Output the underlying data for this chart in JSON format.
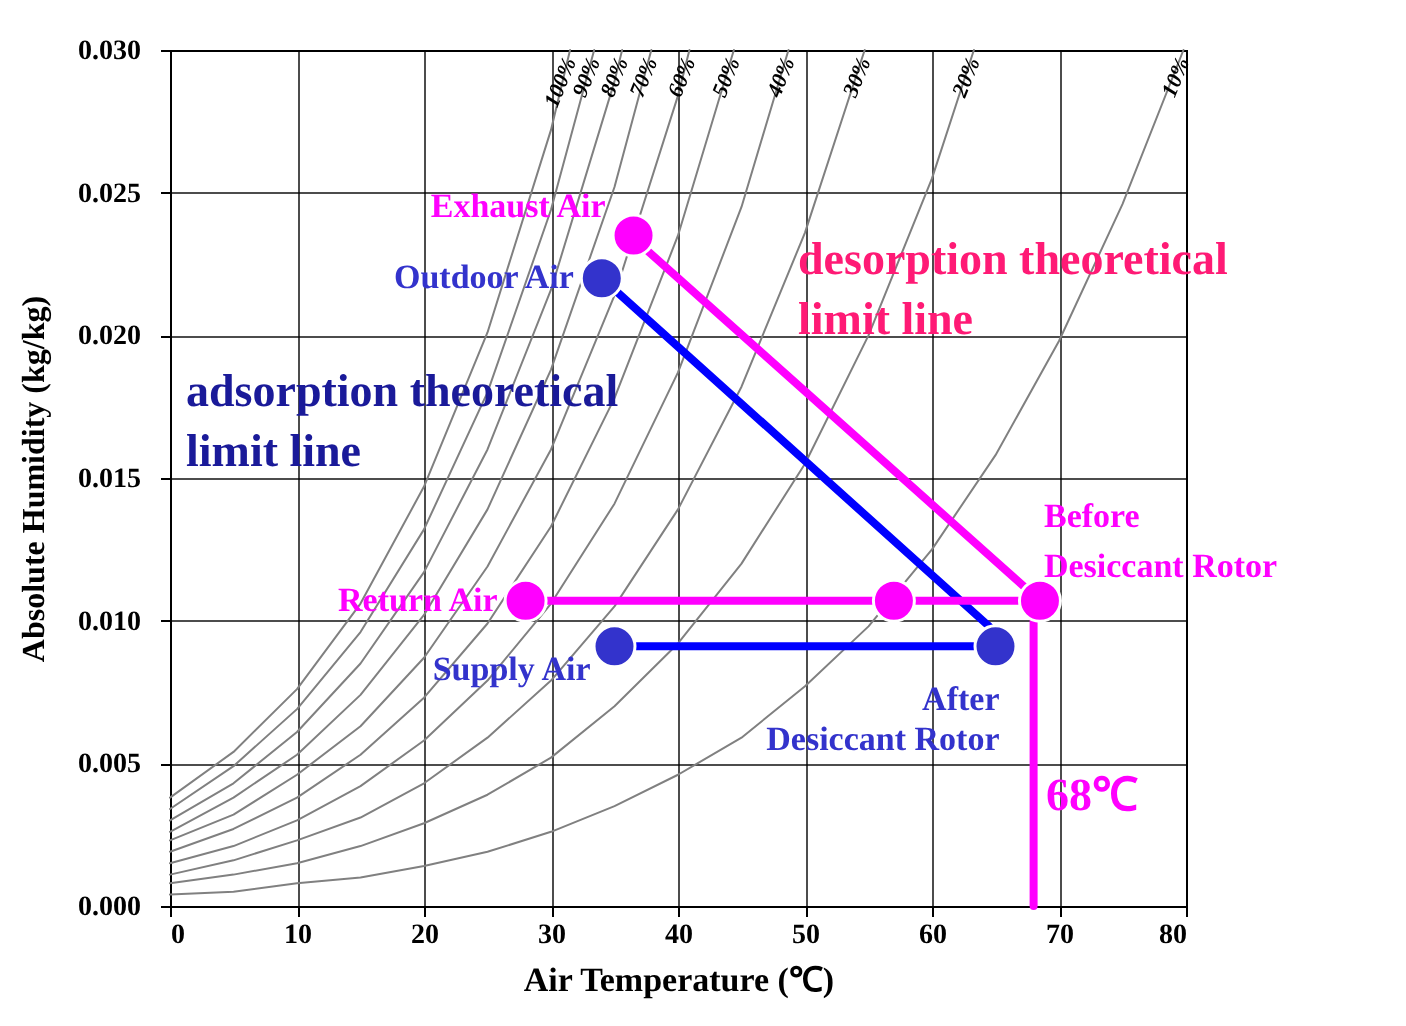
{
  "chart_data": {
    "type": "scatter",
    "xlabel": "Air Temperature (℃)",
    "ylabel": "Absolute Humidity (kg/kg)",
    "xlim": [
      0,
      80
    ],
    "xticks": [
      0,
      10,
      20,
      30,
      40,
      50,
      60,
      70,
      80
    ],
    "ylim": [
      0,
      0.03
    ],
    "yticks": [
      {
        "value": 0,
        "label": "0.000"
      },
      {
        "value": 0.005,
        "label": "0.005"
      },
      {
        "value": 0.01,
        "label": "0.010"
      },
      {
        "value": 0.015,
        "label": "0.015"
      },
      {
        "value": 0.02,
        "label": "0.020"
      },
      {
        "value": 0.025,
        "label": "0.025"
      },
      {
        "value": 0.03,
        "label": "0.030"
      }
    ],
    "grid": true,
    "marker": "circle",
    "series": [
      {
        "type": "line",
        "name": "100%",
        "marker": "none",
        "color": "#808080",
        "x": [
          0,
          5,
          10,
          15,
          20,
          25,
          30,
          31.5
        ],
        "values": [
          0.0038,
          0.0054,
          0.0076,
          0.0106,
          0.0147,
          0.0201,
          0.0272,
          0.03
        ]
      },
      {
        "type": "line",
        "name": "90%",
        "marker": "none",
        "color": "#808080",
        "x": [
          0,
          5,
          10,
          15,
          20,
          25,
          30,
          33.4
        ],
        "values": [
          0.0034,
          0.0049,
          0.0069,
          0.0096,
          0.0132,
          0.018,
          0.0244,
          0.03
        ]
      },
      {
        "type": "line",
        "name": "80%",
        "marker": "none",
        "color": "#808080",
        "x": [
          0,
          5,
          10,
          15,
          20,
          25,
          30,
          35,
          35.6
        ],
        "values": [
          0.003,
          0.0043,
          0.0061,
          0.0085,
          0.0117,
          0.016,
          0.0216,
          0.0289,
          0.03
        ]
      },
      {
        "type": "line",
        "name": "70%",
        "marker": "none",
        "color": "#808080",
        "x": [
          0,
          5,
          10,
          15,
          20,
          25,
          30,
          35,
          37.9
        ],
        "values": [
          0.0026,
          0.0038,
          0.0053,
          0.0074,
          0.0102,
          0.0139,
          0.0188,
          0.0252,
          0.03
        ]
      },
      {
        "type": "line",
        "name": "60%",
        "marker": "none",
        "color": "#808080",
        "x": [
          0,
          5,
          10,
          15,
          20,
          25,
          30,
          35,
          40,
          40.9
        ],
        "values": [
          0.0023,
          0.0032,
          0.0046,
          0.0063,
          0.0087,
          0.0119,
          0.016,
          0.0214,
          0.0284,
          0.03
        ]
      },
      {
        "type": "line",
        "name": "50%",
        "marker": "none",
        "color": "#808080",
        "x": [
          0,
          5,
          10,
          15,
          20,
          25,
          30,
          35,
          40,
          44.4
        ],
        "values": [
          0.0019,
          0.0027,
          0.0038,
          0.0053,
          0.0073,
          0.0099,
          0.0133,
          0.0178,
          0.0235,
          0.03
        ]
      },
      {
        "type": "line",
        "name": "40%",
        "marker": "none",
        "color": "#808080",
        "x": [
          0,
          5,
          10,
          15,
          20,
          25,
          30,
          35,
          40,
          45,
          48.7
        ],
        "values": [
          0.0015,
          0.0021,
          0.003,
          0.0042,
          0.0058,
          0.0079,
          0.0106,
          0.0141,
          0.0187,
          0.0245,
          0.03
        ]
      },
      {
        "type": "line",
        "name": "30%",
        "marker": "none",
        "color": "#808080",
        "x": [
          0,
          5,
          10,
          15,
          20,
          25,
          30,
          35,
          40,
          45,
          50,
          54.7
        ],
        "values": [
          0.0011,
          0.0016,
          0.0023,
          0.0031,
          0.0043,
          0.0059,
          0.0079,
          0.0105,
          0.0139,
          0.0182,
          0.0236,
          0.03
        ]
      },
      {
        "type": "line",
        "name": "20%",
        "marker": "none",
        "color": "#808080",
        "x": [
          0,
          5,
          10,
          15,
          20,
          25,
          30,
          35,
          40,
          45,
          50,
          55,
          60,
          63.3
        ],
        "values": [
          0.0008,
          0.0011,
          0.0015,
          0.0021,
          0.0029,
          0.0039,
          0.0052,
          0.007,
          0.0092,
          0.012,
          0.0155,
          0.02,
          0.0255,
          0.03
        ]
      },
      {
        "type": "line",
        "name": "10%",
        "marker": "none",
        "color": "#808080",
        "x": [
          0,
          5,
          10,
          15,
          20,
          25,
          30,
          35,
          40,
          45,
          50,
          55,
          60,
          65,
          70,
          75,
          79.8
        ],
        "values": [
          0.0004,
          0.0005,
          0.0008,
          0.001,
          0.0014,
          0.0019,
          0.0026,
          0.0035,
          0.0046,
          0.0059,
          0.0077,
          0.0098,
          0.0125,
          0.0158,
          0.0198,
          0.0246,
          0.03
        ]
      },
      {
        "type": "line",
        "marker": "none",
        "color": "#0000ff",
        "x": [
          34,
          64.5
        ],
        "values": [
          0.022,
          0.0098
        ]
      },
      {
        "type": "line",
        "marker": "none",
        "color": "#ff00ff",
        "x": [
          68.5,
          37
        ],
        "values": [
          0.0107,
          0.0232
        ]
      },
      {
        "type": "line",
        "marker": "none",
        "color": "#ff00ff",
        "x": [
          28,
          68.5
        ],
        "values": [
          0.0107,
          0.0107
        ]
      },
      {
        "type": "line",
        "marker": "none",
        "color": "#0000ff",
        "x": [
          65,
          35
        ],
        "values": [
          0.0091,
          0.0091
        ]
      },
      {
        "type": "line",
        "marker": "none",
        "color": "#ff00ff",
        "x": [
          68,
          68
        ],
        "values": [
          0.0107,
          0
        ]
      },
      {
        "name": "Exhaust Air",
        "color": "#ff00ff",
        "x": [
          36.5
        ],
        "values": [
          0.0235
        ]
      },
      {
        "name": "Outdoor Air",
        "color": "#3333cc",
        "x": [
          34
        ],
        "values": [
          0.022
        ]
      },
      {
        "name": "Return Air",
        "color": "#ff00ff",
        "x": [
          28
        ],
        "values": [
          0.0107
        ]
      },
      {
        "color": "#ff00ff",
        "x": [
          57
        ],
        "values": [
          0.0107
        ]
      },
      {
        "name": "Before\nDesiccant Rotor",
        "color": "#ff00ff",
        "x": [
          68.5
        ],
        "values": [
          0.0107
        ]
      },
      {
        "name": "Supply Air",
        "color": "#3333cc",
        "x": [
          35
        ],
        "values": [
          0.0091
        ]
      },
      {
        "name": "After\nDesiccant Rotor",
        "color": "#3333cc",
        "x": [
          65
        ],
        "values": [
          0.0091
        ]
      }
    ],
    "annotations": [
      "adsorption theoretical\nlimit line",
      "desorption theoretical\nlimit line",
      "68℃"
    ]
  }
}
